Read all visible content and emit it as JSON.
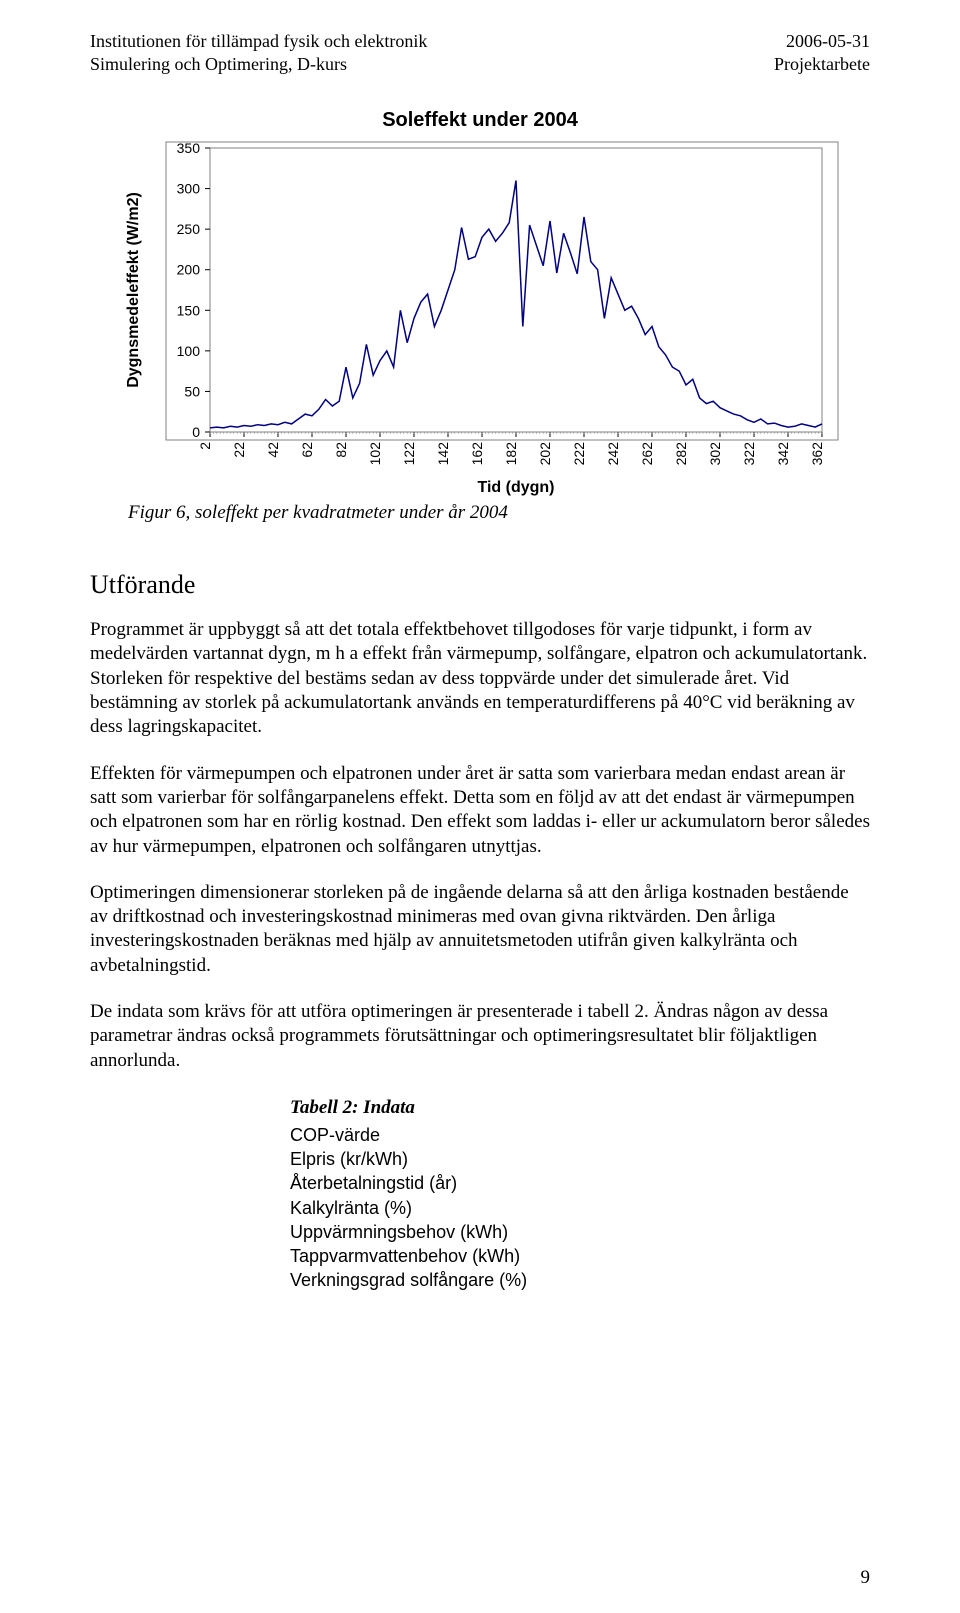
{
  "header": {
    "left1": "Institutionen för tillämpad fysik och elektronik",
    "left2": "Simulering och Optimering, D-kurs",
    "right1": "2006-05-31",
    "right2": "Projektarbete"
  },
  "chart": {
    "type": "line",
    "title": "Soleffekt under 2004",
    "title_fontsize": 20,
    "ylabel": "Dygnsmedeleffekt (W/m2)",
    "xlabel": "Tid (dygn)",
    "label_fontsize": 16,
    "background_color": "#ffffff",
    "border_color": "#808080",
    "line_color": "#000080",
    "line_width": 1.5,
    "ylim": [
      0,
      350
    ],
    "ytick_step": 50,
    "yticks": [
      0,
      50,
      100,
      150,
      200,
      250,
      300,
      350
    ],
    "xlim": [
      2,
      362
    ],
    "xticks": [
      2,
      22,
      42,
      62,
      82,
      102,
      122,
      142,
      162,
      182,
      202,
      222,
      242,
      262,
      282,
      302,
      322,
      342,
      362
    ],
    "tick_fontsize": 14,
    "data": {
      "x": [
        2,
        6,
        10,
        14,
        18,
        22,
        26,
        30,
        34,
        38,
        42,
        46,
        50,
        54,
        58,
        62,
        66,
        70,
        74,
        78,
        82,
        86,
        90,
        94,
        98,
        102,
        106,
        110,
        114,
        118,
        122,
        126,
        130,
        134,
        138,
        142,
        146,
        150,
        154,
        158,
        162,
        166,
        170,
        174,
        178,
        182,
        186,
        190,
        194,
        198,
        202,
        206,
        210,
        214,
        218,
        222,
        226,
        230,
        234,
        238,
        242,
        246,
        250,
        254,
        258,
        262,
        266,
        270,
        274,
        278,
        282,
        286,
        290,
        294,
        298,
        302,
        306,
        310,
        314,
        318,
        322,
        326,
        330,
        334,
        338,
        342,
        346,
        350,
        354,
        358,
        362
      ],
      "y": [
        5,
        6,
        5,
        7,
        6,
        8,
        7,
        9,
        8,
        10,
        9,
        12,
        10,
        16,
        22,
        20,
        28,
        40,
        32,
        38,
        80,
        42,
        60,
        108,
        70,
        88,
        100,
        80,
        150,
        110,
        140,
        160,
        170,
        130,
        150,
        175,
        200,
        252,
        213,
        216,
        240,
        250,
        235,
        245,
        258,
        310,
        130,
        255,
        230,
        205,
        260,
        196,
        245,
        221,
        195,
        265,
        210,
        200,
        140,
        190,
        170,
        150,
        155,
        140,
        120,
        130,
        105,
        95,
        80,
        75,
        58,
        65,
        42,
        35,
        38,
        30,
        26,
        22,
        20,
        15,
        12,
        16,
        10,
        11,
        8,
        6,
        7,
        10,
        8,
        6,
        10
      ]
    }
  },
  "caption": "Figur 6, soleffekt per kvadratmeter under år 2004",
  "sections": {
    "utforande_heading": "Utförande",
    "p1": "Programmet är uppbyggt så att det totala effektbehovet tillgodoses för varje tidpunkt, i form av medelvärden vartannat dygn, m h a effekt från värmepump, solfångare, elpatron och ackumulatortank. Storleken för respektive del bestäms sedan av dess toppvärde under det simulerade året. Vid bestämning av storlek på ackumulatortank används en temperaturdifferens på 40°C vid beräkning av dess lagringskapacitet.",
    "p2": "Effekten för värmepumpen och elpatronen under året är satta som varierbara medan endast arean är satt som varierbar för solfångarpanelens effekt. Detta som en följd av att det endast är värmepumpen och elpatronen som har en rörlig kostnad. Den effekt som laddas i- eller ur ackumulatorn beror således av hur värmepumpen, elpatronen och solfångaren utnyttjas.",
    "p3": "Optimeringen dimensionerar storleken på de ingående delarna så att den årliga kostnaden bestående av driftkostnad och investeringskostnad minimeras med ovan givna riktvärden. Den årliga investeringskostnaden beräknas med hjälp av annuitetsmetoden utifrån given kalkylränta och avbetalningstid.",
    "p4": "De indata som krävs för att utföra optimeringen är presenterade i tabell 2. Ändras någon av dessa parametrar ändras också programmets förutsättningar och optimeringsresultatet blir följaktligen annorlunda."
  },
  "table2": {
    "title": "Tabell 2: Indata",
    "rows": [
      "COP-värde",
      "Elpris (kr/kWh)",
      "Återbetalningstid (år)",
      "Kalkylränta (%)",
      "Uppvärmningsbehov (kWh)",
      "Tappvarmvattenbehov (kWh)",
      "Verkningsgrad solfångare (%)"
    ]
  },
  "page_number": "9"
}
